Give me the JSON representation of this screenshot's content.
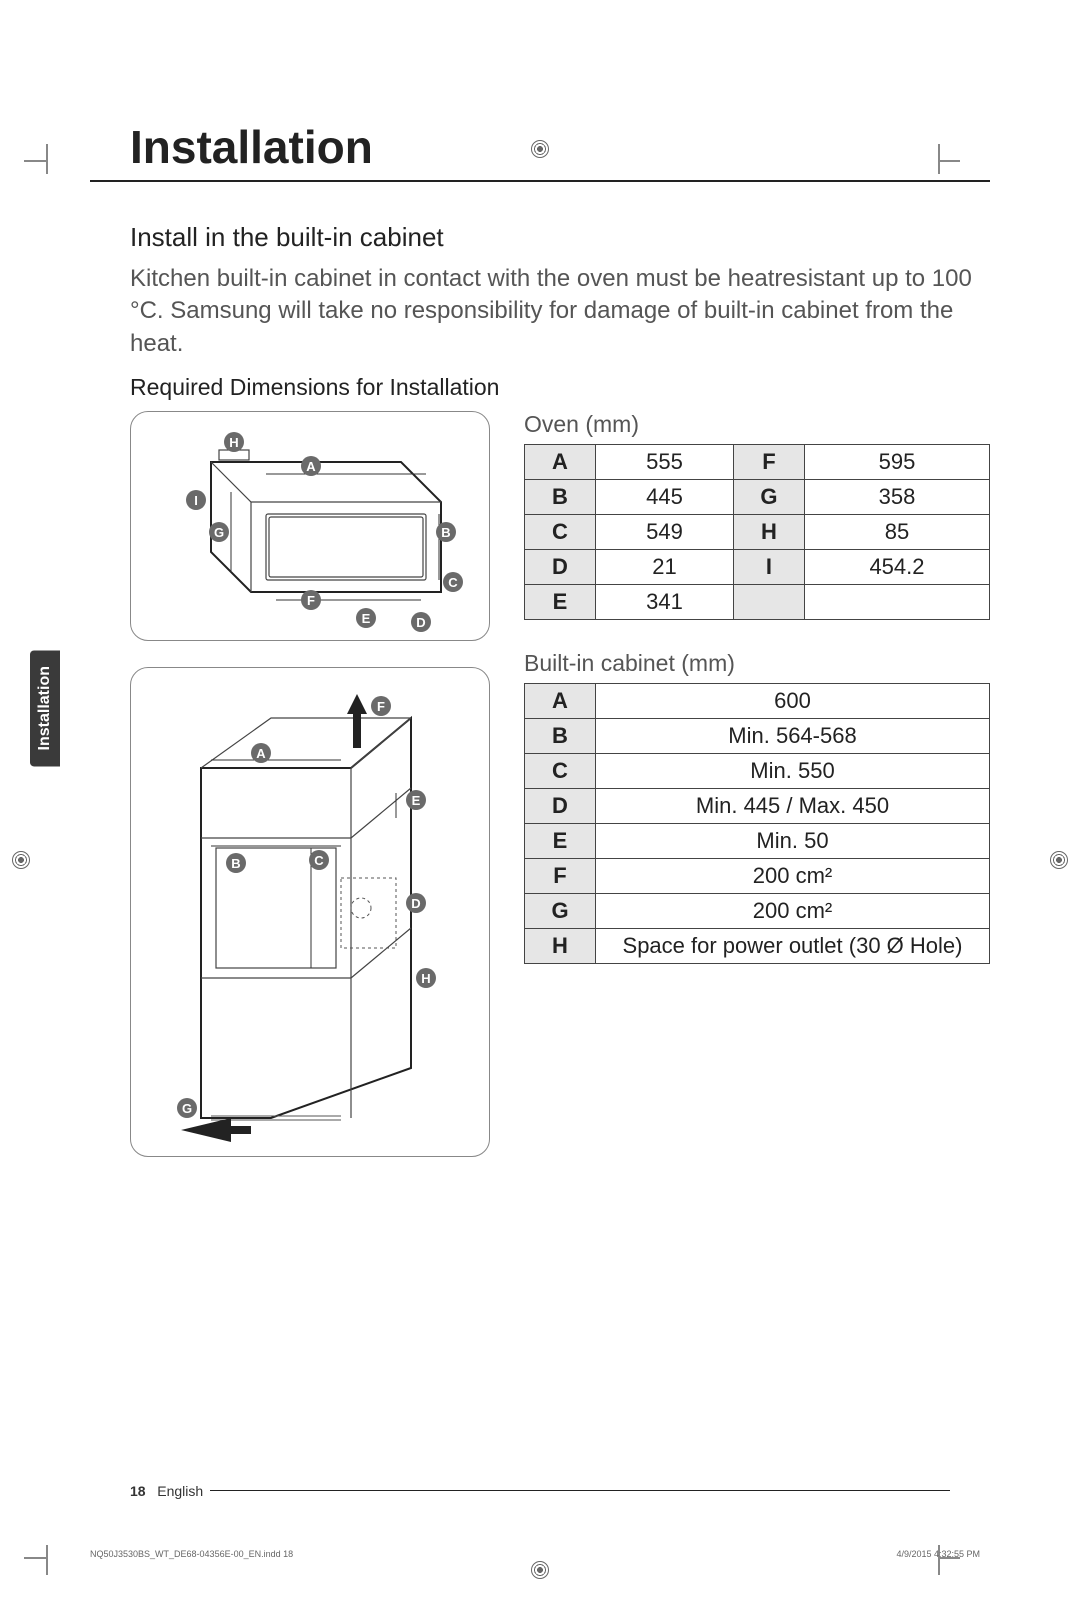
{
  "page": {
    "title": "Installation",
    "side_tab": "Installation",
    "section_heading": "Install in the built-in cabinet",
    "intro_text": "Kitchen built-in cabinet in contact with the oven must be heatresistant up to 100 °C. Samsung will take no responsibility for damage of built-in cabinet from the heat.",
    "dimensions_heading": "Required Dimensions for Installation",
    "footer_page": "18",
    "footer_lang": "English",
    "imprint_left": "NQ50J3530BS_WT_DE68-04356E-00_EN.indd   18",
    "imprint_right": "4/9/2015   4:32:55 PM"
  },
  "oven_diagram": {
    "labels": [
      "A",
      "B",
      "C",
      "D",
      "E",
      "F",
      "G",
      "H",
      "I"
    ]
  },
  "cabinet_diagram": {
    "labels": [
      "A",
      "B",
      "C",
      "D",
      "E",
      "F",
      "G",
      "H"
    ]
  },
  "oven_table": {
    "caption": "Oven (mm)",
    "rows": [
      {
        "k1": "A",
        "v1": "555",
        "k2": "F",
        "v2": "595"
      },
      {
        "k1": "B",
        "v1": "445",
        "k2": "G",
        "v2": "358"
      },
      {
        "k1": "C",
        "v1": "549",
        "k2": "H",
        "v2": "85"
      },
      {
        "k1": "D",
        "v1": "21",
        "k2": "I",
        "v2": "454.2"
      },
      {
        "k1": "E",
        "v1": "341",
        "k2": "",
        "v2": ""
      }
    ],
    "colors": {
      "header_bg": "#e6e6e6",
      "border": "#444444"
    },
    "font_size_pt": 16
  },
  "cabinet_table": {
    "caption": "Built-in cabinet (mm)",
    "rows": [
      {
        "k": "A",
        "v": "600"
      },
      {
        "k": "B",
        "v": "Min. 564-568"
      },
      {
        "k": "C",
        "v": "Min. 550"
      },
      {
        "k": "D",
        "v": "Min. 445 / Max. 450"
      },
      {
        "k": "E",
        "v": "Min. 50"
      },
      {
        "k": "F",
        "v": "200 cm²"
      },
      {
        "k": "G",
        "v": "200 cm²"
      },
      {
        "k": "H",
        "v": "Space for power outlet (30 Ø Hole)"
      }
    ],
    "colors": {
      "header_bg": "#e6e6e6",
      "border": "#444444"
    },
    "font_size_pt": 16
  },
  "style": {
    "page_bg": "#ffffff",
    "text_color": "#222222",
    "muted_text": "#555555",
    "tab_bg": "#3a3a3a",
    "pill_bg": "#6a6a6a",
    "title_fontsize_pt": 34,
    "body_fontsize_pt": 18
  }
}
